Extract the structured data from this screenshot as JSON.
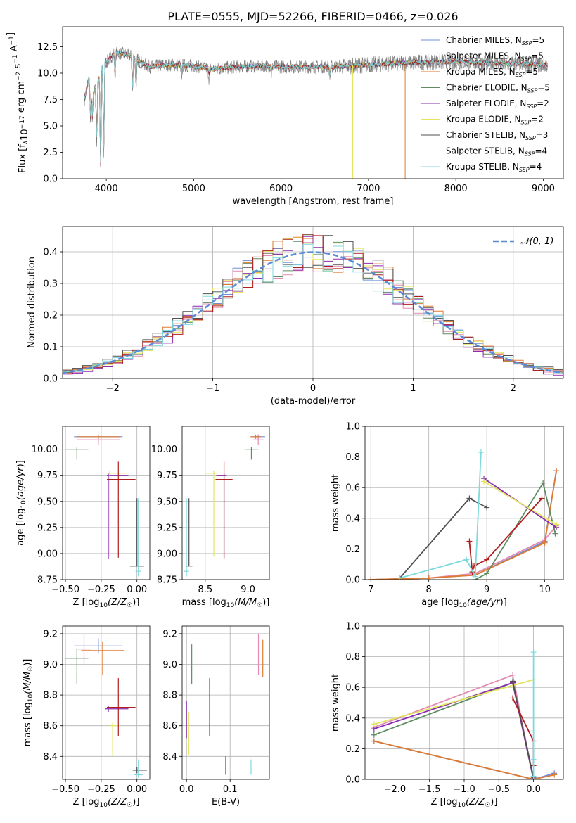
{
  "figure": {
    "title": "PLATE=0555, MJD=52266, FIBERID=0466, z=0.026"
  },
  "models": [
    {
      "name": "Chabrier MILES",
      "nssp": "5",
      "color": "#6f8fd8"
    },
    {
      "name": "Salpeter MILES",
      "nssp": "5",
      "color": "#e48bb3"
    },
    {
      "name": "Kroupa MILES",
      "nssp": "5",
      "color": "#e07a2e"
    },
    {
      "name": "Chabrier ELODIE",
      "nssp": "5",
      "color": "#5f8c62"
    },
    {
      "name": "Salpeter ELODIE",
      "nssp": "2",
      "color": "#8a2db0"
    },
    {
      "name": "Kroupa ELODIE",
      "nssp": "2",
      "color": "#e3e65c"
    },
    {
      "name": "Chabrier STELIB",
      "nssp": "3",
      "color": "#505050"
    },
    {
      "name": "Salpeter STELIB",
      "nssp": "4",
      "color": "#b01d1d"
    },
    {
      "name": "Kroupa STELIB",
      "nssp": "4",
      "color": "#7fd9de"
    }
  ],
  "chart_data": [
    {
      "id": "spectrum",
      "type": "line",
      "xlabel": "wavelength [Angstrom, rest frame]",
      "ylabel_prefix": "Flux [f",
      "ylabel_rest": "10",
      "ylabel_unit": " erg cm",
      "ylabel_tail": " s",
      "ylabel_end": " A",
      "xlim": [
        3500,
        9230
      ],
      "ylim": [
        0,
        14.4
      ],
      "xticks": [
        4000,
        5000,
        6000,
        7000,
        8000,
        9000
      ],
      "yticks": [
        0.0,
        2.5,
        5.0,
        7.5,
        10.0,
        12.5
      ],
      "legend": "top-right",
      "data_range": [
        3750,
        9050
      ],
      "continuum": [
        [
          3750,
          7.5
        ],
        [
          3800,
          9.5
        ],
        [
          3850,
          8.0
        ],
        [
          3900,
          9.0
        ],
        [
          3950,
          10.5
        ],
        [
          4000,
          11.0
        ],
        [
          4100,
          12.0
        ],
        [
          4200,
          11.8
        ],
        [
          4300,
          11.6
        ],
        [
          4400,
          11.0
        ],
        [
          4500,
          10.6
        ],
        [
          4700,
          10.8
        ],
        [
          5000,
          10.7
        ],
        [
          5200,
          10.4
        ],
        [
          5500,
          10.6
        ],
        [
          5800,
          10.7
        ],
        [
          6000,
          10.6
        ],
        [
          6300,
          10.6
        ],
        [
          6600,
          10.6
        ],
        [
          7000,
          10.8
        ],
        [
          7500,
          11.0
        ],
        [
          8000,
          11.1
        ],
        [
          8500,
          10.9
        ],
        [
          9050,
          10.8
        ]
      ],
      "absorption_lines": [
        [
          3820,
          5.0
        ],
        [
          3840,
          5.5
        ],
        [
          3890,
          3.0
        ],
        [
          3935,
          0.3
        ],
        [
          3970,
          1.5
        ],
        [
          4100,
          9.5
        ],
        [
          4300,
          8.0
        ],
        [
          4340,
          8.5
        ],
        [
          4860,
          9.5
        ],
        [
          5175,
          9.5
        ],
        [
          5890,
          9.8
        ],
        [
          6560,
          9.5
        ]
      ],
      "drops": [
        {
          "x": 6820,
          "color_index": 5
        },
        {
          "x": 7420,
          "color_index": 2
        }
      ]
    },
    {
      "id": "residuals",
      "type": "line",
      "xlabel": "(data-model)/error",
      "ylabel": "Normed distribution",
      "xlim": [
        -2.5,
        2.5
      ],
      "ylim": [
        0,
        0.48
      ],
      "xticks": [
        -2,
        -1,
        0,
        1,
        2
      ],
      "yticks": [
        0.0,
        0.1,
        0.2,
        0.3,
        0.4
      ],
      "legend": "top-right",
      "gaussian_label": "N(0,1)",
      "gaussian_color": "#5b8ad6",
      "bin_width": 0.1
    },
    {
      "id": "age-Z",
      "type": "scatter",
      "xlabel": "Z [log10(Z/Z☉)]",
      "ylabel": "age  [log10(age/yr)]",
      "xlim": [
        -0.52,
        0.09
      ],
      "ylim": [
        8.75,
        10.22
      ],
      "xticks": [
        -0.5,
        -0.25,
        0.0
      ],
      "yticks": [
        8.75,
        9.0,
        9.25,
        9.5,
        9.75,
        10.0
      ],
      "points": [
        {
          "m": 0,
          "x": -0.27,
          "y": 10.12,
          "xl": 0.17,
          "xh": 0.17,
          "yl": 0.02,
          "yh": 0.02
        },
        {
          "m": 1,
          "x": -0.27,
          "y": 10.09,
          "xl": 0.15,
          "xh": 0.15,
          "yl": 0.05,
          "yh": 0.05
        },
        {
          "m": 2,
          "x": -0.27,
          "y": 10.12,
          "xl": 0.15,
          "xh": 0.15,
          "yl": 0.02,
          "yh": 0.02
        },
        {
          "m": 3,
          "x": -0.42,
          "y": 10.0,
          "xl": 0.08,
          "xh": 0.08,
          "yl": 0.1,
          "yh": 0.02
        },
        {
          "m": 4,
          "x": -0.2,
          "y": 9.75,
          "xl": 0.01,
          "xh": 0.14,
          "yl": 0.8,
          "yh": 0.02
        },
        {
          "m": 5,
          "x": -0.19,
          "y": 9.77,
          "xl": 0.01,
          "xh": 0.12,
          "yl": 0.8,
          "yh": 0.02
        },
        {
          "m": 6,
          "x": 0.0,
          "y": 8.88,
          "xl": 0.05,
          "xh": 0.05,
          "yl": 0.0,
          "yh": 0.65
        },
        {
          "m": 7,
          "x": -0.13,
          "y": 9.71,
          "xl": 0.08,
          "xh": 0.12,
          "yl": 0.75,
          "yh": 0.17
        },
        {
          "m": 8,
          "x": 0.01,
          "y": 8.83,
          "xl": 0.02,
          "xh": 0.02,
          "yl": 0.05,
          "yh": 0.7
        }
      ]
    },
    {
      "id": "age-mass",
      "type": "scatter",
      "xlabel": "mass [log10(M/M☉)]",
      "ylabel": "",
      "xlim": [
        8.23,
        9.25
      ],
      "ylim": [
        8.75,
        10.22
      ],
      "xticks": [
        8.5,
        9.0
      ],
      "yticks": [
        8.75,
        9.0,
        9.25,
        9.5,
        9.75,
        10.0
      ],
      "points": [
        {
          "m": 0,
          "x": 9.12,
          "y": 10.12,
          "xl": 0.08,
          "xh": 0.08,
          "yl": 0.02,
          "yh": 0.02
        },
        {
          "m": 1,
          "x": 9.12,
          "y": 10.09,
          "xl": 0.06,
          "xh": 0.06,
          "yl": 0.05,
          "yh": 0.05
        },
        {
          "m": 2,
          "x": 9.09,
          "y": 10.12,
          "xl": 0.06,
          "xh": 0.06,
          "yl": 0.02,
          "yh": 0.02
        },
        {
          "m": 3,
          "x": 9.04,
          "y": 10.0,
          "xl": 0.08,
          "xh": 0.08,
          "yl": 0.1,
          "yh": 0.02
        },
        {
          "m": 4,
          "x": 8.72,
          "y": 9.75,
          "xl": 0.09,
          "xh": 0.03,
          "yl": 0.8,
          "yh": 0.02
        },
        {
          "m": 5,
          "x": 8.6,
          "y": 9.77,
          "xl": 0.1,
          "xh": 0.03,
          "yl": 0.8,
          "yh": 0.02
        },
        {
          "m": 6,
          "x": 8.31,
          "y": 8.88,
          "xl": 0.04,
          "xh": 0.04,
          "yl": 0.0,
          "yh": 0.65
        },
        {
          "m": 7,
          "x": 8.72,
          "y": 9.71,
          "xl": 0.1,
          "xh": 0.1,
          "yl": 0.75,
          "yh": 0.17
        },
        {
          "m": 8,
          "x": 8.28,
          "y": 8.83,
          "xl": 0.03,
          "xh": 0.03,
          "yl": 0.05,
          "yh": 0.7
        }
      ]
    },
    {
      "id": "weight-age",
      "type": "line",
      "xlabel": "age  [log10(age/yr)]",
      "ylabel": "mass weight",
      "xlim": [
        6.9,
        10.32
      ],
      "ylim": [
        0,
        1.0
      ],
      "xticks": [
        7,
        8,
        9,
        10
      ],
      "yticks": [
        0.0,
        0.2,
        0.4,
        0.6,
        0.8,
        1.0
      ],
      "series": [
        {
          "m": 0,
          "x": [
            7.0,
            8.0,
            8.8,
            10.0,
            10.2
          ],
          "y": [
            0.0,
            0.01,
            0.03,
            0.25,
            0.71
          ]
        },
        {
          "m": 1,
          "x": [
            7.0,
            8.0,
            8.8,
            10.0,
            10.2
          ],
          "y": [
            0.0,
            0.01,
            0.04,
            0.26,
            0.35
          ]
        },
        {
          "m": 2,
          "x": [
            7.0,
            8.0,
            8.8,
            10.0,
            10.2
          ],
          "y": [
            0.0,
            0.01,
            0.03,
            0.24,
            0.71
          ]
        },
        {
          "m": 3,
          "x": [
            8.8,
            9.0,
            9.97,
            10.18
          ],
          "y": [
            0.0,
            0.04,
            0.63,
            0.3
          ]
        },
        {
          "m": 4,
          "x": [
            8.95,
            10.2
          ],
          "y": [
            0.66,
            0.34
          ]
        },
        {
          "m": 5,
          "x": [
            8.95,
            10.2
          ],
          "y": [
            0.64,
            0.36
          ]
        },
        {
          "m": 6,
          "x": [
            7.5,
            8.7,
            9.0
          ],
          "y": [
            0.01,
            0.53,
            0.47
          ]
        },
        {
          "m": 7,
          "x": [
            8.7,
            8.75,
            8.78,
            9.0,
            9.95
          ],
          "y": [
            0.25,
            0.05,
            0.09,
            0.13,
            0.53
          ]
        },
        {
          "m": 8,
          "x": [
            7.5,
            8.65,
            8.8,
            8.9
          ],
          "y": [
            0.01,
            0.13,
            0.02,
            0.83
          ]
        }
      ]
    },
    {
      "id": "mass-Z",
      "type": "scatter",
      "xlabel": "Z [log10(Z/Z☉)]",
      "ylabel": "mass [log10(M/M☉)]",
      "xlim": [
        -0.52,
        0.09
      ],
      "ylim": [
        8.25,
        9.25
      ],
      "xticks": [
        -0.5,
        -0.25,
        0.0
      ],
      "yticks": [
        8.4,
        8.6,
        8.8,
        9.0,
        9.2
      ],
      "points": [
        {
          "m": 0,
          "x": -0.27,
          "y": 9.12,
          "xl": 0.17,
          "xh": 0.17,
          "yl": 0.05,
          "yh": 0.05
        },
        {
          "m": 1,
          "x": -0.37,
          "y": 9.1,
          "xl": 0.05,
          "xh": 0.05,
          "yl": 0.1,
          "yh": 0.1
        },
        {
          "m": 2,
          "x": -0.24,
          "y": 9.09,
          "xl": 0.15,
          "xh": 0.15,
          "yl": 0.16,
          "yh": 0.06
        },
        {
          "m": 3,
          "x": -0.42,
          "y": 9.04,
          "xl": 0.08,
          "xh": 0.08,
          "yl": 0.17,
          "yh": 0.06
        },
        {
          "m": 4,
          "x": -0.2,
          "y": 8.71,
          "xl": 0.02,
          "xh": 0.14,
          "yl": 0.02,
          "yh": 0.02
        },
        {
          "m": 5,
          "x": -0.17,
          "y": 8.6,
          "xl": 0.02,
          "xh": 0.05,
          "yl": 0.2,
          "yh": 0.02
        },
        {
          "m": 6,
          "x": 0.0,
          "y": 8.31,
          "xl": 0.03,
          "xh": 0.07,
          "yl": 0.02,
          "yh": 0.02
        },
        {
          "m": 7,
          "x": -0.13,
          "y": 8.72,
          "xl": 0.08,
          "xh": 0.12,
          "yl": 0.19,
          "yh": 0.19
        },
        {
          "m": 8,
          "x": 0.01,
          "y": 8.28,
          "xl": 0.03,
          "xh": 0.03,
          "yl": 0.02,
          "yh": 0.1
        }
      ]
    },
    {
      "id": "mass-EBV",
      "type": "scatter",
      "xlabel": "E(B-V)",
      "ylabel": "",
      "xlim": [
        -0.01,
        0.19
      ],
      "ylim": [
        8.25,
        9.25
      ],
      "xticks": [
        0.0,
        0.1
      ],
      "yticks": [
        8.4,
        8.6,
        8.8,
        9.0,
        9.2
      ],
      "points": [
        {
          "m": 1,
          "x": 0.165,
          "y": 9.05,
          "xl": 0.0,
          "xh": 0.0,
          "yl": 0.12,
          "yh": 0.15
        },
        {
          "m": 2,
          "x": 0.175,
          "y": 9.04,
          "xl": 0.0,
          "xh": 0.0,
          "yl": 0.12,
          "yh": 0.12
        },
        {
          "m": 3,
          "x": 0.012,
          "y": 9.0,
          "xl": 0.0,
          "xh": 0.0,
          "yl": 0.13,
          "yh": 0.13
        },
        {
          "m": 4,
          "x": 0.0,
          "y": 8.62,
          "xl": 0.0,
          "xh": 0.0,
          "yl": 0.1,
          "yh": 0.14
        },
        {
          "m": 5,
          "x": 0.005,
          "y": 8.55,
          "xl": 0.0,
          "xh": 0.0,
          "yl": 0.14,
          "yh": 0.14
        },
        {
          "m": 6,
          "x": 0.09,
          "y": 8.34,
          "xl": 0.0,
          "xh": 0.0,
          "yl": 0.06,
          "yh": 0.06
        },
        {
          "m": 7,
          "x": 0.053,
          "y": 8.72,
          "xl": 0.0,
          "xh": 0.0,
          "yl": 0.19,
          "yh": 0.19
        },
        {
          "m": 8,
          "x": 0.148,
          "y": 8.33,
          "xl": 0.0,
          "xh": 0.0,
          "yl": 0.05,
          "yh": 0.05
        }
      ]
    },
    {
      "id": "weight-Z",
      "type": "line",
      "xlabel": "Z [log10(Z/Z☉)]",
      "ylabel": "mass weight",
      "xlim": [
        -2.43,
        0.43
      ],
      "ylim": [
        0,
        1.0
      ],
      "xticks": [
        -2.0,
        -1.5,
        -1.0,
        -0.5,
        0.0
      ],
      "yticks": [
        0.0,
        0.2,
        0.4,
        0.6,
        0.8,
        1.0
      ],
      "series": [
        {
          "m": 0,
          "x": [
            -2.3,
            0.0,
            0.3
          ],
          "y": [
            0.25,
            0.0,
            0.04
          ]
        },
        {
          "m": 1,
          "x": [
            -2.3,
            -0.3,
            0.0
          ],
          "y": [
            0.34,
            0.68,
            0.0
          ]
        },
        {
          "m": 2,
          "x": [
            -2.3,
            0.0,
            0.3
          ],
          "y": [
            0.25,
            0.0,
            0.03
          ]
        },
        {
          "m": 3,
          "x": [
            -2.3,
            -0.3,
            0.0
          ],
          "y": [
            0.29,
            0.63,
            0.0
          ]
        },
        {
          "m": 4,
          "x": [
            -2.3,
            -0.3,
            0.0
          ],
          "y": [
            0.33,
            0.63,
            0.0
          ]
        },
        {
          "m": 5,
          "x": [
            -2.3,
            0.0
          ],
          "y": [
            0.36,
            0.65
          ]
        },
        {
          "m": 6,
          "x": [
            -0.3,
            0.0
          ],
          "y": [
            0.64,
            0.01
          ]
        },
        {
          "m": 7,
          "x": [
            -0.3,
            0.0,
            0.0
          ],
          "y": [
            0.53,
            0.25,
            0.09
          ]
        },
        {
          "m": 8,
          "x": [
            0.0,
            0.0,
            0.0
          ],
          "y": [
            0.83,
            0.13,
            0.02
          ]
        }
      ]
    }
  ]
}
